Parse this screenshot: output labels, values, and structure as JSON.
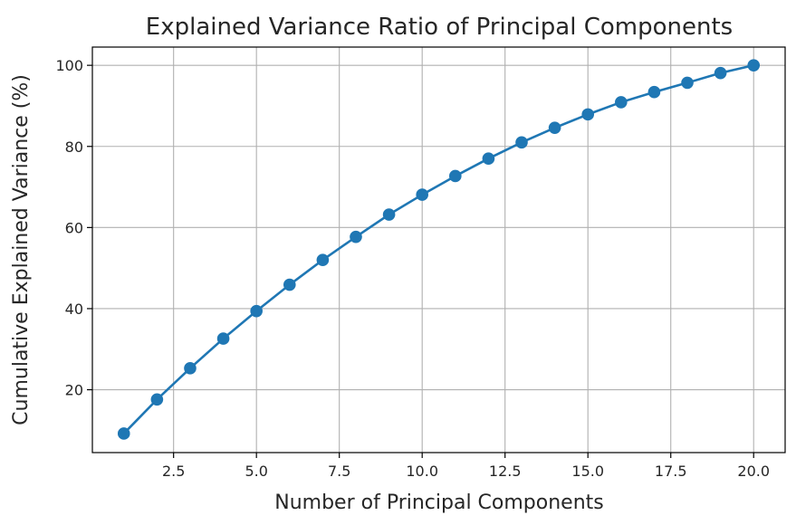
{
  "chart_data": {
    "type": "line",
    "title": "Explained Variance Ratio of Principal Components",
    "xlabel": "Number of Principal Components",
    "ylabel": "Cumulative Explained Variance (%)",
    "xlim": [
      0.05,
      20.95
    ],
    "ylim": [
      4.5,
      104.5
    ],
    "x_ticks": [
      2.5,
      5.0,
      7.5,
      10.0,
      12.5,
      15.0,
      17.5,
      20.0
    ],
    "x_tick_labels": [
      "2.5",
      "5.0",
      "7.5",
      "10.0",
      "12.5",
      "15.0",
      "17.5",
      "20.0"
    ],
    "y_ticks": [
      20,
      40,
      60,
      80,
      100
    ],
    "y_tick_labels": [
      "20",
      "40",
      "60",
      "80",
      "100"
    ],
    "grid": true,
    "series": [
      {
        "x": [
          1,
          2,
          3,
          4,
          5,
          6,
          7,
          8,
          9,
          10,
          11,
          12,
          13,
          14,
          15,
          16,
          17,
          18,
          19,
          20
        ],
        "values": [
          9.2,
          17.6,
          25.3,
          32.6,
          39.4,
          45.9,
          52.0,
          57.7,
          63.2,
          68.1,
          72.7,
          77.0,
          81.0,
          84.6,
          87.9,
          90.9,
          93.4,
          95.7,
          98.1,
          100.0
        ],
        "color": "#1f77b4",
        "marker": "circle"
      }
    ]
  }
}
